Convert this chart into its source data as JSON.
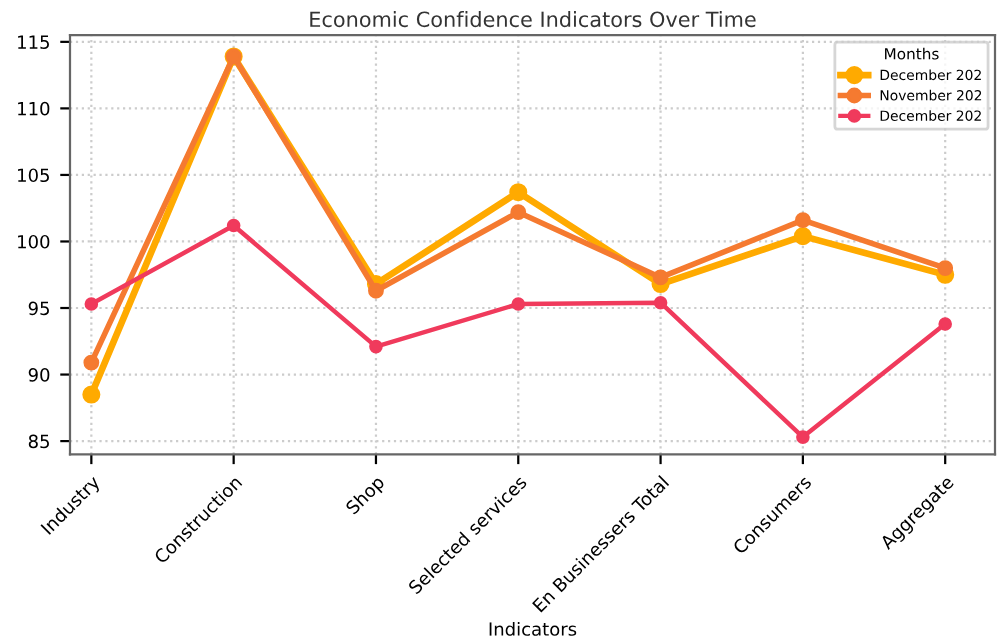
{
  "chart_data": {
    "type": "line",
    "title": "Economic Confidence Indicators Over Time",
    "xlabel": "Indicators",
    "legend_title": "Months",
    "categories": [
      "Industry",
      "Construction",
      "Shop",
      "Selected services",
      "En Businessers Total",
      "Consumers",
      "Aggregate"
    ],
    "series": [
      {
        "name": "December 202",
        "color": "#ffaa00",
        "values": [
          88.5,
          113.9,
          96.8,
          103.7,
          96.8,
          100.4,
          97.5
        ]
      },
      {
        "name": "November 202",
        "color": "#f57a30",
        "values": [
          90.9,
          113.9,
          96.3,
          102.2,
          97.3,
          101.6,
          98.0
        ]
      },
      {
        "name": "December 202",
        "color": "#f03a5c",
        "values": [
          95.3,
          101.2,
          92.1,
          95.3,
          95.4,
          85.3,
          93.8
        ]
      }
    ],
    "ylim": [
      84,
      115.5
    ],
    "yticks": [
      85,
      90,
      95,
      100,
      105,
      110,
      115
    ],
    "grid": true,
    "legend": "top right",
    "marker": "circle",
    "line_style": "solid"
  }
}
